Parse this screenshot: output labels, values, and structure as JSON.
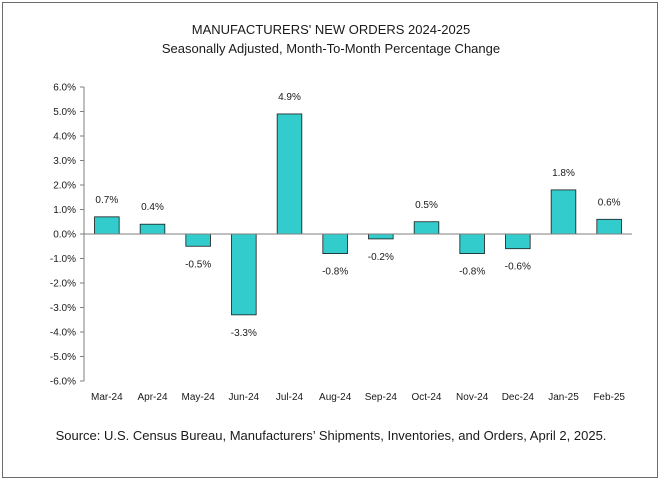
{
  "chart_data": {
    "type": "bar",
    "title": "MANUFACTURERS' NEW ORDERS 2024-2025",
    "subtitle": "Seasonally Adjusted,  Month-To-Month Percentage Change",
    "xlabel": "",
    "ylabel": "",
    "categories": [
      "Mar-24",
      "Apr-24",
      "May-24",
      "Jun-24",
      "Jul-24",
      "Aug-24",
      "Sep-24",
      "Oct-24",
      "Nov-24",
      "Dec-24",
      "Jan-25",
      "Feb-25"
    ],
    "values": [
      0.7,
      0.4,
      -0.5,
      -3.3,
      4.9,
      -0.8,
      -0.2,
      0.5,
      -0.8,
      -0.6,
      1.8,
      0.6
    ],
    "value_labels": [
      "0.7%",
      "0.4%",
      "-0.5%",
      "-3.3%",
      "4.9%",
      "-0.8%",
      "-0.2%",
      "0.5%",
      "-0.8%",
      "-0.6%",
      "1.8%",
      "0.6%"
    ],
    "ylim": [
      -6,
      6
    ],
    "yticks": [
      "6.0%",
      "5.0%",
      "4.0%",
      "3.0%",
      "2.0%",
      "1.0%",
      "0.0%",
      "-1.0%",
      "-2.0%",
      "-3.0%",
      "-4.0%",
      "-5.0%",
      "-6.0%"
    ],
    "grid": false,
    "legend": "none",
    "bar_color": "#33CCCC",
    "bar_edge_color": "#1a1a1a"
  },
  "footer": {
    "source": "Source: U.S. Census Bureau, Manufacturers’ Shipments, Inventories, and Orders, April 2, 2025."
  }
}
